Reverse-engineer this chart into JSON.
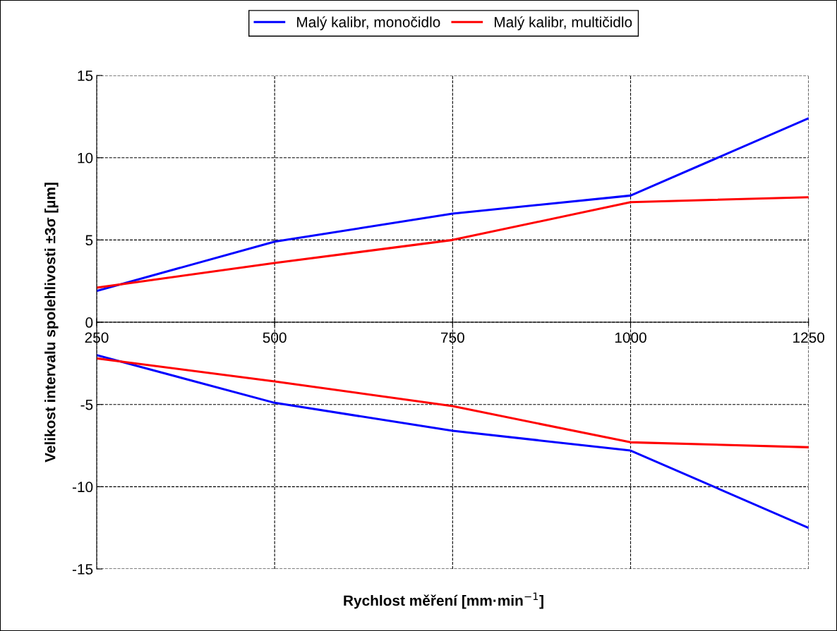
{
  "chart_data": {
    "type": "line",
    "xlabel": "Rychlost měření [mm·min$^{−1}$]",
    "ylabel": "Velikost intervalu spolehlivosti ±3σ [µm]",
    "x": [
      250,
      500,
      750,
      1000,
      1250
    ],
    "series": [
      {
        "name": "Malý kalibr, monočidlo",
        "color": "#0000ff",
        "values": [
          1.9,
          4.9,
          6.6,
          7.7,
          12.4
        ]
      },
      {
        "name": "Malý kalibr, multičidlo",
        "color": "#ff0000",
        "values": [
          2.1,
          3.6,
          5.0,
          7.3,
          7.6
        ]
      },
      {
        "color": "#0000ff",
        "values": [
          -2.0,
          -4.9,
          -6.6,
          -7.8,
          -12.5
        ]
      },
      {
        "color": "#ff0000",
        "values": [
          -2.2,
          -3.6,
          -5.1,
          -7.3,
          -7.6
        ]
      }
    ],
    "xlim": [
      250,
      1250
    ],
    "xticks": [
      250,
      500,
      750,
      1000,
      1250
    ],
    "ylim": [
      -15,
      15
    ],
    "yticks": [
      -15,
      -10,
      -5,
      0,
      5,
      10,
      15
    ],
    "grid": true,
    "legend": "top",
    "line_style": "solid"
  }
}
